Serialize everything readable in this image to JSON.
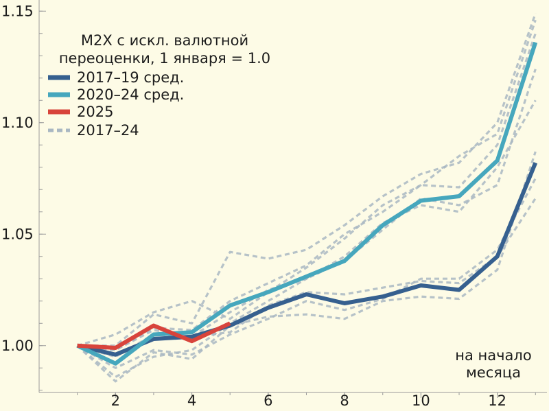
{
  "chart_data": {
    "type": "line",
    "legend_title_lines": [
      "M2X с искл. валютной",
      "переоценки, 1 января = 1.0"
    ],
    "annotation_lines": [
      "на начало",
      "месяца"
    ],
    "legend_position": "top-left",
    "grid": false,
    "xlim": [
      0.0,
      13.3
    ],
    "ylim": [
      0.979,
      1.155
    ],
    "x_ticks": [
      2,
      4,
      6,
      8,
      10,
      12
    ],
    "y_ticks": [
      1.0,
      1.05,
      1.1,
      1.15
    ],
    "y_tick_labels": [
      "1.00",
      "1.05",
      "1.10",
      "1.15"
    ],
    "series": [
      {
        "name": "2017–24",
        "color": "#a9b7c2",
        "style": "dashed",
        "lines": [
          {
            "x": [
              1,
              2,
              3,
              4,
              5,
              6,
              7,
              8,
              9,
              10,
              11,
              12,
              13
            ],
            "y": [
              1.0,
              0.984,
              0.997,
              0.994,
              1.009,
              1.013,
              1.014,
              1.012,
              1.02,
              1.022,
              1.021,
              1.034,
              1.087
            ]
          },
          {
            "x": [
              1,
              2,
              3,
              4,
              5,
              6,
              7,
              8,
              9,
              10,
              11,
              12,
              13
            ],
            "y": [
              1.0,
              0.99,
              0.998,
              0.996,
              1.005,
              1.012,
              1.02,
              1.016,
              1.021,
              1.03,
              1.03,
              1.043,
              1.075
            ]
          },
          {
            "x": [
              1,
              2,
              3,
              4,
              5,
              6,
              7,
              8,
              9,
              10,
              11,
              12,
              13
            ],
            "y": [
              1.0,
              0.998,
              1.007,
              1.004,
              1.006,
              1.018,
              1.024,
              1.023,
              1.026,
              1.029,
              1.028,
              1.04,
              1.066
            ]
          },
          {
            "x": [
              1,
              2,
              3,
              4,
              5,
              6,
              7,
              8,
              9,
              10,
              11,
              12,
              13
            ],
            "y": [
              1.0,
              0.986,
              0.995,
              0.998,
              1.01,
              1.02,
              1.03,
              1.04,
              1.055,
              1.063,
              1.06,
              1.08,
              1.11
            ]
          },
          {
            "x": [
              1,
              2,
              3,
              4,
              5,
              6,
              7,
              8,
              9,
              10,
              11,
              12,
              13
            ],
            "y": [
              1.0,
              0.995,
              1.005,
              1.004,
              1.015,
              1.025,
              1.03,
              1.038,
              1.052,
              1.066,
              1.063,
              1.072,
              1.124
            ]
          },
          {
            "x": [
              1,
              2,
              3,
              4,
              5,
              6,
              7,
              8,
              9,
              10,
              11,
              12,
              13
            ],
            "y": [
              1.0,
              0.998,
              1.008,
              1.007,
              1.02,
              1.028,
              1.036,
              1.05,
              1.06,
              1.072,
              1.071,
              1.09,
              1.14
            ]
          },
          {
            "x": [
              1,
              2,
              3,
              4,
              5,
              6,
              7,
              8,
              9,
              10,
              11,
              12,
              13
            ],
            "y": [
              1.0,
              1.0,
              1.014,
              1.01,
              1.042,
              1.039,
              1.043,
              1.054,
              1.067,
              1.077,
              1.082,
              1.1,
              1.149
            ]
          },
          {
            "x": [
              1,
              2,
              3,
              4,
              5,
              6,
              7,
              8,
              9,
              10,
              11,
              12,
              13
            ],
            "y": [
              1.0,
              1.005,
              1.015,
              1.02,
              1.012,
              1.024,
              1.035,
              1.048,
              1.063,
              1.072,
              1.085,
              1.095,
              1.146
            ]
          }
        ]
      },
      {
        "name": "2017–19 сред.",
        "color": "#36608f",
        "style": "solid",
        "x": [
          1,
          2,
          3,
          4,
          5,
          6,
          7,
          8,
          9,
          10,
          11,
          12,
          13
        ],
        "y": [
          1.0,
          0.996,
          1.003,
          1.004,
          1.009,
          1.017,
          1.023,
          1.019,
          1.022,
          1.027,
          1.025,
          1.04,
          1.082
        ]
      },
      {
        "name": "2020–24 сред.",
        "color": "#46a7bd",
        "style": "solid",
        "x": [
          1,
          2,
          3,
          4,
          5,
          6,
          7,
          8,
          9,
          10,
          11,
          12,
          13
        ],
        "y": [
          1.0,
          0.992,
          1.005,
          1.006,
          1.018,
          1.024,
          1.031,
          1.038,
          1.054,
          1.065,
          1.067,
          1.083,
          1.136
        ]
      },
      {
        "name": "2025",
        "color": "#d8443b",
        "style": "solid",
        "x": [
          1,
          2,
          3,
          4,
          5
        ],
        "y": [
          1.0,
          0.999,
          1.009,
          1.002,
          1.01
        ]
      }
    ]
  }
}
